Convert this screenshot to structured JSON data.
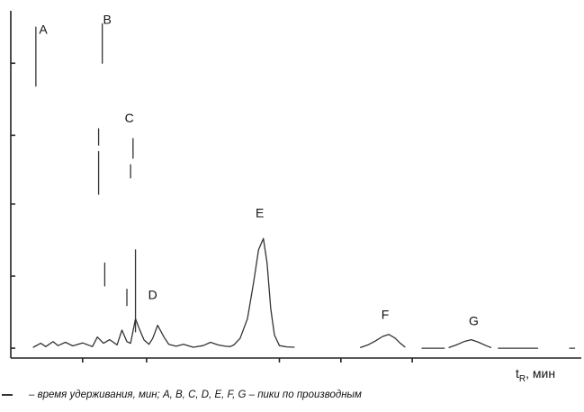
{
  "chart_data": {
    "type": "line",
    "title": "",
    "ylabel": "",
    "xlabel": {
      "symbol": "t",
      "subscript": "R",
      "unit": ", мин"
    },
    "series": [
      {
        "name": "",
        "points": [
          [
            0.0,
            0.3
          ],
          [
            0.3,
            1.5
          ],
          [
            0.5,
            0.5
          ],
          [
            0.8,
            2.0
          ],
          [
            1.0,
            0.8
          ],
          [
            1.3,
            1.8
          ],
          [
            1.6,
            0.7
          ],
          [
            2.0,
            1.6
          ],
          [
            2.4,
            0.5
          ],
          [
            2.6,
            3.4
          ],
          [
            2.85,
            1.5
          ],
          [
            3.1,
            2.6
          ],
          [
            3.4,
            1.0
          ],
          [
            3.6,
            5.5
          ],
          [
            3.8,
            2.0
          ],
          [
            3.95,
            1.5
          ],
          [
            4.15,
            9.0
          ],
          [
            4.3,
            6.0
          ],
          [
            4.5,
            2.5
          ],
          [
            4.7,
            1.2
          ],
          [
            4.85,
            3.0
          ],
          [
            5.05,
            7.0
          ],
          [
            5.3,
            3.5
          ],
          [
            5.5,
            1.2
          ],
          [
            5.8,
            0.6
          ],
          [
            6.1,
            1.2
          ],
          [
            6.5,
            0.3
          ],
          [
            6.9,
            0.8
          ],
          [
            7.2,
            1.8
          ],
          [
            7.5,
            1.0
          ],
          [
            7.8,
            0.6
          ],
          [
            8.0,
            0.5
          ],
          [
            8.15,
            1.0
          ],
          [
            8.4,
            3.0
          ],
          [
            8.7,
            9.0
          ],
          [
            8.95,
            20.0
          ],
          [
            9.15,
            30.0
          ],
          [
            9.35,
            33.5
          ],
          [
            9.5,
            26.0
          ],
          [
            9.65,
            12.0
          ],
          [
            9.8,
            4.0
          ],
          [
            10.0,
            0.8
          ],
          [
            10.3,
            0.4
          ],
          [
            10.6,
            0.3
          ],
          null,
          [
            13.3,
            0.2
          ],
          [
            13.6,
            1.0
          ],
          [
            13.9,
            2.2
          ],
          [
            14.2,
            3.6
          ],
          [
            14.45,
            4.2
          ],
          [
            14.7,
            3.1
          ],
          [
            14.9,
            1.6
          ],
          [
            15.1,
            0.4
          ],
          null,
          [
            15.8,
            0.0
          ],
          [
            16.7,
            0.0
          ],
          null,
          [
            16.9,
            0.2
          ],
          [
            17.2,
            1.0
          ],
          [
            17.5,
            2.0
          ],
          [
            17.8,
            2.6
          ],
          [
            18.1,
            1.8
          ],
          [
            18.4,
            0.8
          ],
          [
            18.6,
            0.2
          ],
          null,
          [
            18.9,
            0.0
          ],
          [
            20.5,
            0.0
          ],
          null,
          [
            21.8,
            0.0
          ],
          [
            22.0,
            0.0
          ]
        ],
        "vertical_segments": [
          {
            "x": 0.1,
            "from": 80,
            "to": 98
          },
          {
            "x": 2.65,
            "from": 47,
            "to": 60
          },
          {
            "x": 2.8,
            "from": 87,
            "to": 99
          },
          {
            "x": 2.9,
            "from": 19,
            "to": 26
          },
          {
            "x": 2.65,
            "from": 62,
            "to": 67
          },
          {
            "x": 4.15,
            "from": 5,
            "to": 30
          },
          {
            "x": 3.8,
            "from": 13,
            "to": 18
          },
          {
            "x": 3.95,
            "from": 52,
            "to": 56
          },
          {
            "x": 4.05,
            "from": 58,
            "to": 64
          }
        ]
      }
    ],
    "peak_labels": [
      {
        "text": "A",
        "x": 0.4,
        "y": 96
      },
      {
        "text": "B",
        "x": 3.0,
        "y": 99
      },
      {
        "text": "C",
        "x": 3.9,
        "y": 69
      },
      {
        "text": "D",
        "x": 4.85,
        "y": 15
      },
      {
        "text": "E",
        "x": 9.2,
        "y": 40
      },
      {
        "text": "F",
        "x": 14.3,
        "y": 9
      },
      {
        "text": "G",
        "x": 17.9,
        "y": 7
      }
    ],
    "xlim": [
      -0.7,
      22.2
    ],
    "ylim": [
      -3,
      103
    ],
    "x_ticks": [
      2,
      4.6,
      10,
      12.5,
      15.4
    ],
    "y_ticks": [
      0,
      22,
      44,
      65,
      87
    ],
    "grid": false,
    "legend": "none"
  },
  "caption": {
    "text": "– время удерживания, мин; A, B, C, D, E, F, G – пики по производным"
  }
}
